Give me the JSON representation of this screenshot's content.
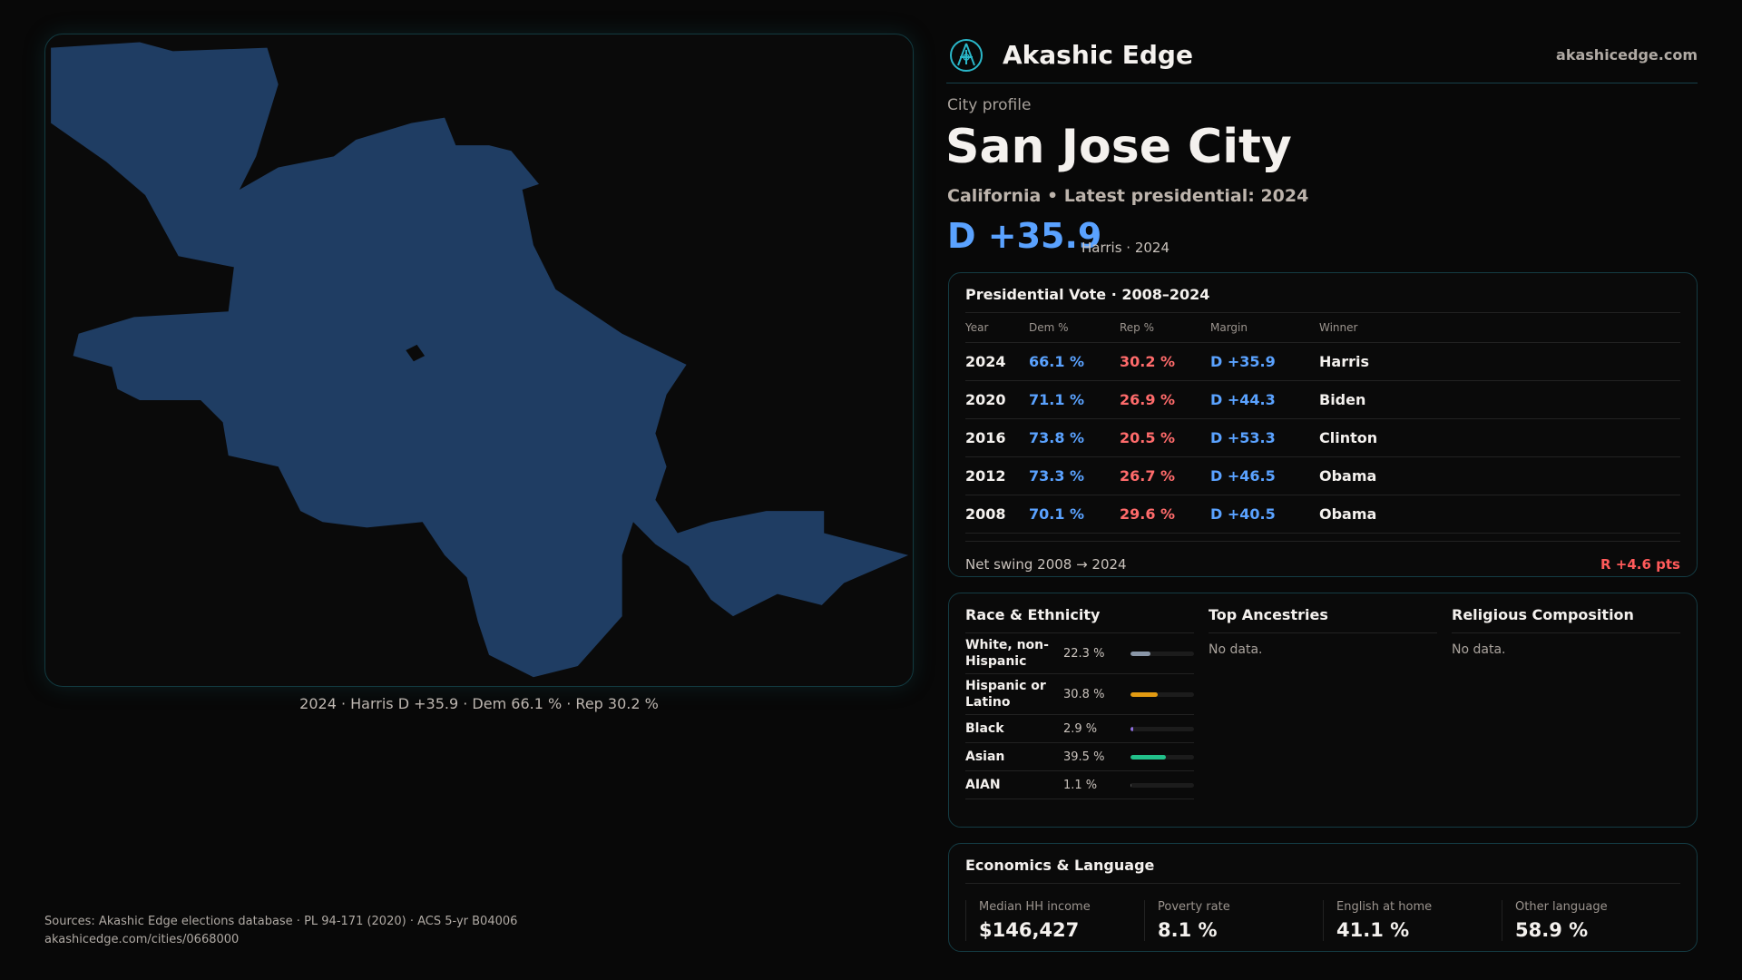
{
  "brand": {
    "name": "Akashic Edge",
    "site": "akashicedge.com",
    "logo_icon": "compass-emblem-icon",
    "accent": "#2ab7c9"
  },
  "profile": {
    "kicker": "City profile",
    "title": "San Jose City",
    "subtitle": "California • Latest presidential: 2024",
    "margin": "D +35.9",
    "margin_note": "Harris · 2024"
  },
  "map": {
    "caption": "2024 · Harris D +35.9 · Dem 66.1 % · Rep 30.2 %",
    "fill": "#1f3d63"
  },
  "vote": {
    "title": "Presidential Vote · 2008–2024",
    "headers": [
      "Year",
      "Dem %",
      "Rep %",
      "Margin",
      "Winner"
    ],
    "rows": [
      [
        "2024",
        "66.1 %",
        "30.2 %",
        "D +35.9",
        "Harris"
      ],
      [
        "2020",
        "71.1 %",
        "26.9 %",
        "D +44.3",
        "Biden"
      ],
      [
        "2016",
        "73.8 %",
        "20.5 %",
        "D +53.3",
        "Clinton"
      ],
      [
        "2012",
        "73.3 %",
        "26.7 %",
        "D +46.5",
        "Obama"
      ],
      [
        "2008",
        "70.1 %",
        "29.6 %",
        "D +40.5",
        "Obama"
      ]
    ],
    "swing_label": "Net swing 2008 → 2024",
    "swing_value": "R +4.6 pts"
  },
  "race": {
    "title": "Race & Ethnicity",
    "rows": [
      {
        "label": "White, non-Hispanic",
        "value": "22.3 %",
        "pct": 22.3,
        "color": "#8a97a8"
      },
      {
        "label": "Hispanic or Latino",
        "value": "30.8 %",
        "pct": 30.8,
        "color": "#e39b12"
      },
      {
        "label": "Black",
        "value": "2.9 %",
        "pct": 2.9,
        "color": "#8f6fe0"
      },
      {
        "label": "Asian",
        "value": "39.5 %",
        "pct": 39.5,
        "color": "#22c08a"
      },
      {
        "label": "AIAN",
        "value": "1.1 %",
        "pct": 1.1,
        "color": "#555555"
      }
    ]
  },
  "ancestries": {
    "title": "Top Ancestries",
    "empty": "No data."
  },
  "religion": {
    "title": "Religious Composition",
    "empty": "No data."
  },
  "econ": {
    "title": "Economics & Language",
    "stats": [
      {
        "label": "Median HH income",
        "value": "$146,427"
      },
      {
        "label": "Poverty rate",
        "value": "8.1 %"
      },
      {
        "label": "English at home",
        "value": "41.1 %"
      },
      {
        "label": "Other language",
        "value": "58.9 %"
      }
    ]
  },
  "footer": {
    "sources": "Sources: Akashic Edge elections database · PL 94-171 (2020) · ACS 5-yr B04006",
    "url": "akashicedge.com/cities/0668000"
  }
}
